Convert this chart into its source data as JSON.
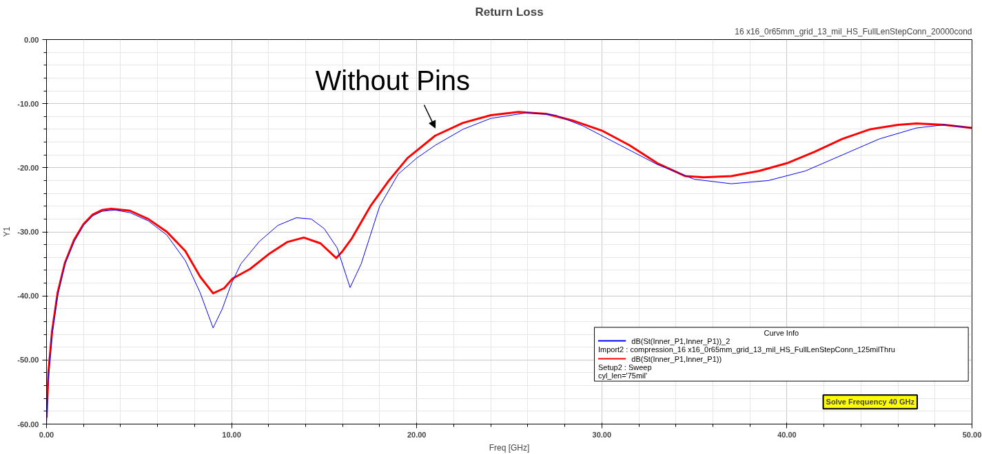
{
  "chart_data": {
    "type": "line",
    "title": "Return Loss",
    "subtitle": "16 x16_0r65mm_grid_13_mil_HS_FullLenStepConn_20000cond",
    "xlabel": "Freq [GHz]",
    "ylabel": "Y1",
    "legend_title": "Curve Info",
    "xlim": [
      0,
      50
    ],
    "ylim": [
      -60,
      0
    ],
    "xticks": [
      {
        "value": 0,
        "label": "0.00"
      },
      {
        "value": 10,
        "label": "10.00"
      },
      {
        "value": 20,
        "label": "20.00"
      },
      {
        "value": 30,
        "label": "30.00"
      },
      {
        "value": 40,
        "label": "40.00"
      },
      {
        "value": 50,
        "label": "50.00"
      }
    ],
    "yticks": [
      {
        "value": 0,
        "label": "0.00"
      },
      {
        "value": -10,
        "label": "-10.00"
      },
      {
        "value": -20,
        "label": "-20.00"
      },
      {
        "value": -30,
        "label": "-30.00"
      },
      {
        "value": -40,
        "label": "-40.00"
      },
      {
        "value": -50,
        "label": "-50.00"
      },
      {
        "value": -60,
        "label": "-60.00"
      }
    ],
    "grid": true,
    "legend": "bottom right",
    "marker": "none",
    "line_style": "solid",
    "series": [
      {
        "name": "dB(St(Inner_P1,Inner_P1))_2\nImport2 : compression_16 x16_0r65mm_grid_13_mil_HS_FullLenStepConn_125milThru",
        "color": "#0000ff",
        "x": [
          0.0,
          0.1,
          0.3,
          0.6,
          1.0,
          1.5,
          2.0,
          2.5,
          3.0,
          3.7,
          4.5,
          5.5,
          6.5,
          7.5,
          8.3,
          9.0,
          9.5,
          10.0,
          10.5,
          11.5,
          12.5,
          13.5,
          14.3,
          15.0,
          15.7,
          16.4,
          17.0,
          18.0,
          19.0,
          20.0,
          21.0,
          22.5,
          24.0,
          26.0,
          27.5,
          29.0,
          31.0,
          33.0,
          35.0,
          37.0,
          39.0,
          41.0,
          43.0,
          45.0,
          47.0,
          48.5,
          50.0
        ],
        "values": [
          -60,
          -53,
          -46,
          -40,
          -35,
          -31.5,
          -29,
          -27.5,
          -26.8,
          -26.6,
          -27,
          -28.3,
          -30.5,
          -34.5,
          -39.5,
          -45,
          -42,
          -38,
          -35,
          -31.5,
          -29,
          -27.8,
          -28,
          -29.5,
          -32.5,
          -38.7,
          -35,
          -26,
          -21,
          -18.5,
          -16.5,
          -14,
          -12.3,
          -11.4,
          -11.8,
          -13.5,
          -16.5,
          -19.5,
          -21.8,
          -22.5,
          -22,
          -20.5,
          -18,
          -15.5,
          -13.8,
          -13.3,
          -13.8
        ]
      },
      {
        "name": "dB(St(Inner_P1,Inner_P1))\nSetup2 : Sweep\ncyl_len='75mil'",
        "color": "#ff0000",
        "x": [
          0.0,
          0.1,
          0.3,
          0.6,
          1.0,
          1.5,
          2.0,
          2.5,
          3.0,
          3.5,
          4.5,
          5.5,
          6.5,
          7.5,
          8.3,
          9.0,
          9.6,
          10.05,
          11.0,
          12.0,
          13.0,
          13.9,
          14.8,
          15.65,
          16.0,
          16.5,
          17.5,
          18.5,
          19.5,
          21.0,
          22.5,
          24.0,
          25.5,
          27.0,
          28.5,
          30.0,
          31.5,
          33.0,
          34.5,
          35.5,
          37.0,
          38.5,
          40.0,
          41.5,
          43.0,
          44.5,
          46.0,
          47.0,
          48.5,
          50.0
        ],
        "values": [
          -59,
          -52,
          -45.5,
          -39.5,
          -34.8,
          -31.2,
          -28.8,
          -27.3,
          -26.6,
          -26.4,
          -26.7,
          -28,
          -30,
          -33,
          -37,
          -39.6,
          -38.8,
          -37.3,
          -35.8,
          -33.5,
          -31.6,
          -30.9,
          -31.8,
          -34.1,
          -33,
          -31,
          -26,
          -22,
          -18.5,
          -15,
          -13,
          -11.8,
          -11.3,
          -11.6,
          -12.7,
          -14.2,
          -16.5,
          -19.3,
          -21.3,
          -21.5,
          -21.3,
          -20.5,
          -19.3,
          -17.5,
          -15.5,
          -14,
          -13.3,
          -13.1,
          -13.3,
          -13.8
        ]
      }
    ],
    "annotations": [
      {
        "text": "Without Pins",
        "x": 21,
        "y": -15
      },
      "Solve Frequency 40 GHz"
    ]
  }
}
